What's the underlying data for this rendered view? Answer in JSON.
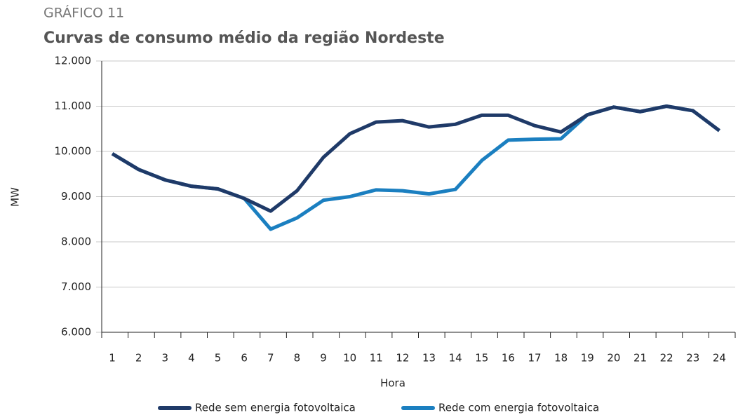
{
  "chart_data": {
    "type": "line",
    "kicker": "GRÁFICO 11",
    "title": "Curvas de consumo médio da região Nordeste",
    "y_label": "MW",
    "x_label": "Hora",
    "categories": [
      "1",
      "2",
      "3",
      "4",
      "5",
      "6",
      "7",
      "8",
      "9",
      "10",
      "11",
      "12",
      "13",
      "14",
      "15",
      "16",
      "17",
      "18",
      "19",
      "20",
      "21",
      "22",
      "23",
      "24"
    ],
    "series": [
      {
        "name": "Rede sem energia fotovoltaica",
        "color": "#1f3a68",
        "values": [
          9950,
          9600,
          9370,
          9230,
          9170,
          8960,
          8680,
          9130,
          9870,
          10390,
          10650,
          10680,
          10540,
          10600,
          10800,
          10800,
          10570,
          10430,
          10810,
          10980,
          10880,
          11000,
          10900,
          10460
        ]
      },
      {
        "name": "Rede com energia fotovoltaica",
        "color": "#1b7fc0",
        "values": [
          9950,
          9600,
          9370,
          9230,
          9170,
          8960,
          8280,
          8530,
          8920,
          9000,
          9150,
          9130,
          9060,
          9160,
          9800,
          10250,
          10270,
          10280,
          10810,
          10980,
          10880,
          11000,
          10900,
          10460
        ]
      }
    ],
    "ylim": [
      6000,
      12000
    ],
    "yticks": [
      {
        "value": 6000,
        "label": "6.000"
      },
      {
        "value": 7000,
        "label": "7.000"
      },
      {
        "value": 8000,
        "label": "8.000"
      },
      {
        "value": 9000,
        "label": "9.000"
      },
      {
        "value": 10000,
        "label": "10.000"
      },
      {
        "value": 11000,
        "label": "11.000"
      },
      {
        "value": 12000,
        "label": "12.000"
      }
    ],
    "grid": true
  }
}
